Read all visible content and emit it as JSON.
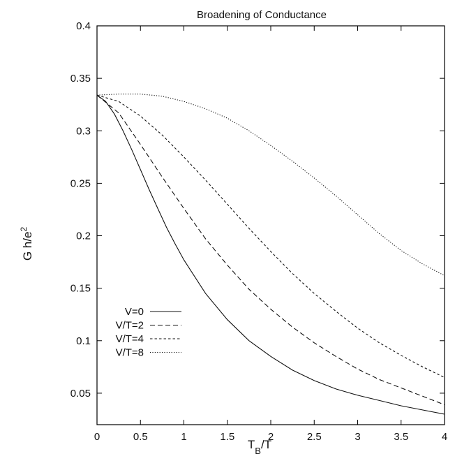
{
  "chart_data": {
    "type": "line",
    "title": "Broadening of Conductance",
    "xlabel": {
      "main": "T",
      "sub": "B",
      "rest": "/T"
    },
    "ylabel": {
      "main": "G h/e",
      "sup": "2"
    },
    "xlim": [
      0,
      4
    ],
    "ylim": [
      0.02,
      0.4
    ],
    "xticks": [
      {
        "value": 0,
        "label": "0"
      },
      {
        "value": 0.5,
        "label": "0.5"
      },
      {
        "value": 1,
        "label": "1"
      },
      {
        "value": 1.5,
        "label": "1.5"
      },
      {
        "value": 2,
        "label": "2"
      },
      {
        "value": 2.5,
        "label": "2.5"
      },
      {
        "value": 3,
        "label": "3"
      },
      {
        "value": 3.5,
        "label": "3.5"
      },
      {
        "value": 4,
        "label": "4"
      }
    ],
    "yticks": [
      {
        "value": 0.05,
        "label": "0.05"
      },
      {
        "value": 0.1,
        "label": "0.1"
      },
      {
        "value": 0.15,
        "label": "0.15"
      },
      {
        "value": 0.2,
        "label": "0.2"
      },
      {
        "value": 0.25,
        "label": "0.25"
      },
      {
        "value": 0.3,
        "label": "0.3"
      },
      {
        "value": 0.35,
        "label": "0.35"
      },
      {
        "value": 0.4,
        "label": "0.4"
      }
    ],
    "grid": false,
    "legend_position": "middle-left",
    "series": [
      {
        "name": "V=0",
        "dash": "solid",
        "x": [
          0,
          0.1,
          0.2,
          0.3,
          0.4,
          0.5,
          0.6,
          0.7,
          0.8,
          0.9,
          1.0,
          1.25,
          1.5,
          1.75,
          2.0,
          2.25,
          2.5,
          2.75,
          3.0,
          3.25,
          3.5,
          3.75,
          4.0
        ],
        "y": [
          0.334,
          0.328,
          0.316,
          0.3,
          0.282,
          0.263,
          0.244,
          0.226,
          0.208,
          0.192,
          0.177,
          0.145,
          0.12,
          0.1,
          0.085,
          0.072,
          0.062,
          0.054,
          0.048,
          0.043,
          0.038,
          0.034,
          0.03
        ]
      },
      {
        "name": "V/T=2",
        "dash": "dashed",
        "x": [
          0,
          0.25,
          0.5,
          0.75,
          1.0,
          1.25,
          1.5,
          1.75,
          2.0,
          2.25,
          2.5,
          2.75,
          3.0,
          3.25,
          3.5,
          3.75,
          4.0
        ],
        "y": [
          0.334,
          0.317,
          0.287,
          0.256,
          0.226,
          0.197,
          0.172,
          0.149,
          0.13,
          0.113,
          0.098,
          0.085,
          0.073,
          0.063,
          0.055,
          0.047,
          0.039
        ]
      },
      {
        "name": "V/T=4",
        "dash": "dense-dashed",
        "x": [
          0,
          0.25,
          0.5,
          0.75,
          1.0,
          1.25,
          1.5,
          1.75,
          2.0,
          2.25,
          2.5,
          2.75,
          3.0,
          3.25,
          3.5,
          3.75,
          4.0
        ],
        "y": [
          0.334,
          0.328,
          0.314,
          0.296,
          0.275,
          0.253,
          0.23,
          0.207,
          0.185,
          0.164,
          0.145,
          0.128,
          0.112,
          0.098,
          0.086,
          0.075,
          0.065
        ]
      },
      {
        "name": "V/T=8",
        "dash": "dotted",
        "x": [
          0,
          0.25,
          0.5,
          0.75,
          1.0,
          1.25,
          1.5,
          1.75,
          2.0,
          2.25,
          2.5,
          2.75,
          3.0,
          3.25,
          3.5,
          3.75,
          4.0
        ],
        "y": [
          0.334,
          0.335,
          0.335,
          0.333,
          0.328,
          0.321,
          0.312,
          0.3,
          0.286,
          0.271,
          0.255,
          0.238,
          0.22,
          0.202,
          0.186,
          0.173,
          0.162
        ]
      }
    ]
  }
}
